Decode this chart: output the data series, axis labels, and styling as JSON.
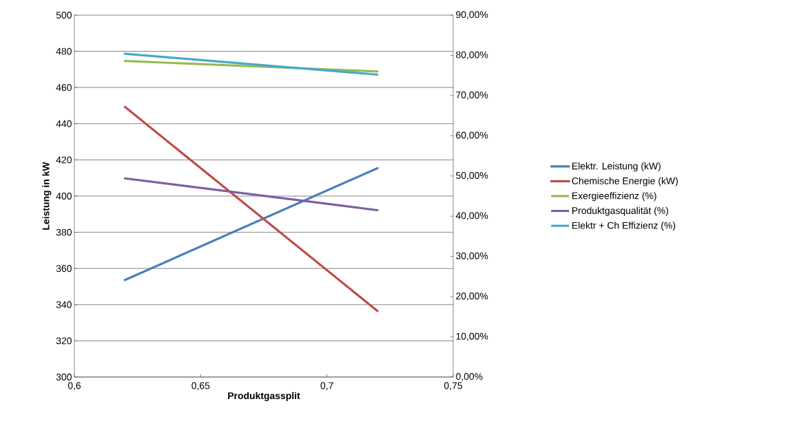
{
  "chart_data": {
    "type": "line",
    "xlabel": "Produktgassplit",
    "ylabel": "Leistung in kW",
    "xlim": [
      0.6,
      0.75
    ],
    "xticks": [
      {
        "value": 0.6,
        "label": "0,6"
      },
      {
        "value": 0.65,
        "label": "0,65"
      },
      {
        "value": 0.7,
        "label": "0,7"
      },
      {
        "value": 0.75,
        "label": "0,75"
      }
    ],
    "ylim": [
      300,
      500
    ],
    "yticks": [
      300,
      320,
      340,
      360,
      380,
      400,
      420,
      440,
      460,
      480,
      500
    ],
    "y2lim": [
      0,
      90
    ],
    "y2ticks": [
      {
        "value": 0,
        "label": "0,00%"
      },
      {
        "value": 10,
        "label": "10,00%"
      },
      {
        "value": 20,
        "label": "20,00%"
      },
      {
        "value": 30,
        "label": "30,00%"
      },
      {
        "value": 40,
        "label": "40,00%"
      },
      {
        "value": 50,
        "label": "50,00%"
      },
      {
        "value": 60,
        "label": "60,00%"
      },
      {
        "value": 70,
        "label": "70,00%"
      },
      {
        "value": 80,
        "label": "80,00%"
      },
      {
        "value": 90,
        "label": "90,00%"
      }
    ],
    "x": [
      0.62,
      0.72
    ],
    "grid": "y",
    "legend": "right",
    "marker": "none",
    "line_style": "solid",
    "series": [
      {
        "name": "Elektr. Leistung (kW)",
        "color": "#4a7ebb",
        "values": [
          353.6,
          415.4
        ]
      },
      {
        "name": "Chemische Energie (kW)",
        "color": "#be4b48",
        "values": [
          449.3,
          336.5
        ]
      },
      {
        "name": "Exergieeffizienz (%)",
        "color": "#98b954",
        "values": [
          78.6,
          76.0
        ],
        "axis": "y2"
      },
      {
        "name": "Produktgasqualität (%)",
        "color": "#7d5fa0",
        "values": [
          49.4,
          41.5
        ],
        "axis": "y2"
      },
      {
        "name": "Elektr + Ch Effizienz (%)",
        "color": "#46aac5",
        "values": [
          80.4,
          75.2
        ],
        "axis": "y2"
      }
    ]
  }
}
